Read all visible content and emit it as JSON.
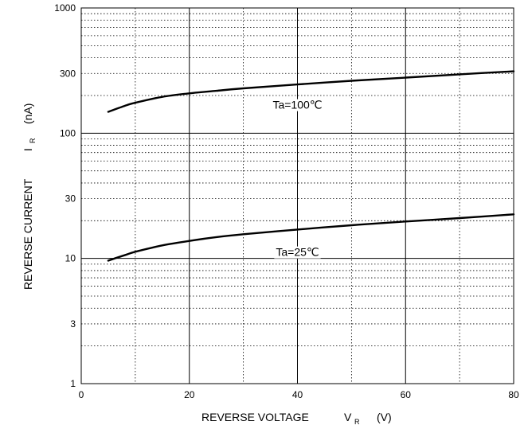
{
  "chart_data": {
    "type": "line",
    "xlabel": {
      "main": "REVERSE VOLTAGE",
      "symbol": "V",
      "subscript": "R",
      "unit": "(V)"
    },
    "ylabel": {
      "main": "REVERSE CURRENT",
      "symbol": "I",
      "subscript": "R",
      "unit": "(nA)"
    },
    "xlim": [
      0,
      80
    ],
    "ylim": [
      1,
      1000
    ],
    "yscale": "log",
    "grid": true,
    "x_ticks": [
      0,
      20,
      40,
      60,
      80
    ],
    "x_tick_labels": [
      "0",
      "20",
      "40",
      "60",
      "80"
    ],
    "y_ticks": [
      1,
      3,
      10,
      30,
      100,
      300,
      1000
    ],
    "y_tick_labels": [
      "1",
      "3",
      "10",
      "30",
      "100",
      "300",
      "1000"
    ],
    "series": [
      {
        "annotation": "Ta=100℃",
        "annotation_at": [
          40,
          150
        ],
        "x": [
          5,
          8,
          10,
          15,
          20,
          25,
          30,
          40,
          50,
          60,
          70,
          80
        ],
        "y": [
          148,
          165,
          175,
          195,
          208,
          218,
          228,
          245,
          262,
          278,
          295,
          312
        ]
      },
      {
        "annotation": "Ta=25℃",
        "annotation_at": [
          40,
          10
        ],
        "x": [
          5,
          8,
          10,
          15,
          20,
          25,
          30,
          40,
          50,
          60,
          70,
          80
        ],
        "y": [
          9.6,
          10.6,
          11.3,
          12.7,
          13.8,
          14.8,
          15.6,
          17.0,
          18.4,
          19.7,
          21.0,
          22.5
        ]
      }
    ]
  }
}
